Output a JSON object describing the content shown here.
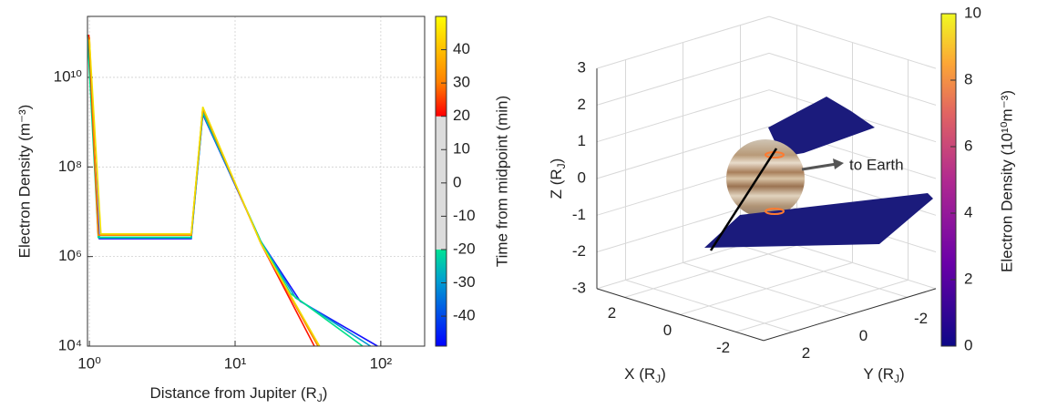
{
  "chart_data": [
    {
      "type": "line",
      "log_x": true,
      "log_y": true,
      "grid": true,
      "x_label": [
        "Distance from Jupiter (R",
        "J",
        ")"
      ],
      "y_label": "Electron Density (m⁻³)",
      "xlim": [
        0.97,
        200
      ],
      "ylim": [
        10000,
        230000000000
      ],
      "xticks": [
        {
          "value": 1,
          "label": "10⁰"
        },
        {
          "value": 10,
          "label": "10¹"
        },
        {
          "value": 100,
          "label": "10²"
        }
      ],
      "yticks": [
        {
          "value": 10000,
          "label": "10⁴"
        },
        {
          "value": 1000000,
          "label": "10⁶"
        },
        {
          "value": 100000000,
          "label": "10⁸"
        },
        {
          "value": 10000000000,
          "label": "10¹⁰"
        }
      ],
      "series": [
        {
          "color": "#1414ff",
          "x": [
            0.98,
            1.17,
            5.0,
            6.0,
            15,
            28,
            95
          ],
          "values": [
            80000000000,
            2500000,
            2500000,
            1500000000,
            2200000,
            100000,
            10000
          ]
        },
        {
          "color": "#0098d0",
          "x": [
            0.98,
            1.16,
            5.0,
            6.0,
            15,
            26,
            85
          ],
          "values": [
            80000000000,
            2600000,
            2600000,
            1600000000,
            2200000,
            120000,
            10000
          ]
        },
        {
          "color": "#00e08a",
          "x": [
            0.97,
            1.15,
            5.0,
            6.0,
            15,
            24,
            75
          ],
          "values": [
            90000000000,
            2700000,
            2700000,
            1700000000,
            2200000,
            150000,
            10000
          ]
        },
        {
          "color": "#ff1400",
          "x": [
            0.99,
            1.15,
            5.0,
            6.0,
            15,
            35
          ],
          "values": [
            90000000000,
            3000000,
            3000000,
            2000000000,
            2000000,
            10000
          ]
        },
        {
          "color": "#ff8000",
          "x": [
            1.0,
            1.15,
            5.0,
            6.0,
            15,
            37
          ],
          "values": [
            80000000000,
            3000000,
            3000000,
            2000000000,
            2000000,
            10000
          ]
        },
        {
          "color": "#f0e000",
          "x": [
            1.0,
            1.2,
            5.0,
            6.0,
            15,
            38
          ],
          "values": [
            70000000000,
            3200000,
            3200000,
            2200000000,
            2000000,
            10000
          ]
        }
      ],
      "colorbar": {
        "label": "Time from midpoint (min)",
        "lim": [
          -49,
          50
        ],
        "ticks": [
          -40,
          -30,
          -20,
          -10,
          0,
          10,
          20,
          30,
          40
        ],
        "masked": [
          -20,
          20
        ],
        "mask_color": "#dcdcdc"
      }
    },
    {
      "type": "3d",
      "x_label": [
        "X  (R",
        "J",
        ")"
      ],
      "y_label": [
        "Y  (R",
        "J",
        ")"
      ],
      "z_label": [
        "Z  (R",
        "J",
        ")"
      ],
      "xlim": [
        -3,
        3
      ],
      "ylim": [
        -3,
        3
      ],
      "zlim": [
        -3,
        3
      ],
      "xticks": [
        2,
        0,
        -2
      ],
      "yticks": [
        2,
        0,
        -2
      ],
      "zticks": [
        -3,
        -2,
        -1,
        0,
        1,
        2,
        3
      ],
      "sheet_color": "#1b1b7c",
      "annotation": "to Earth",
      "colorbar": {
        "label": "Electron Density  (10¹⁰m⁻³)",
        "lim": [
          0,
          10
        ],
        "ticks": [
          0,
          2,
          4,
          6,
          8,
          10
        ]
      }
    }
  ]
}
